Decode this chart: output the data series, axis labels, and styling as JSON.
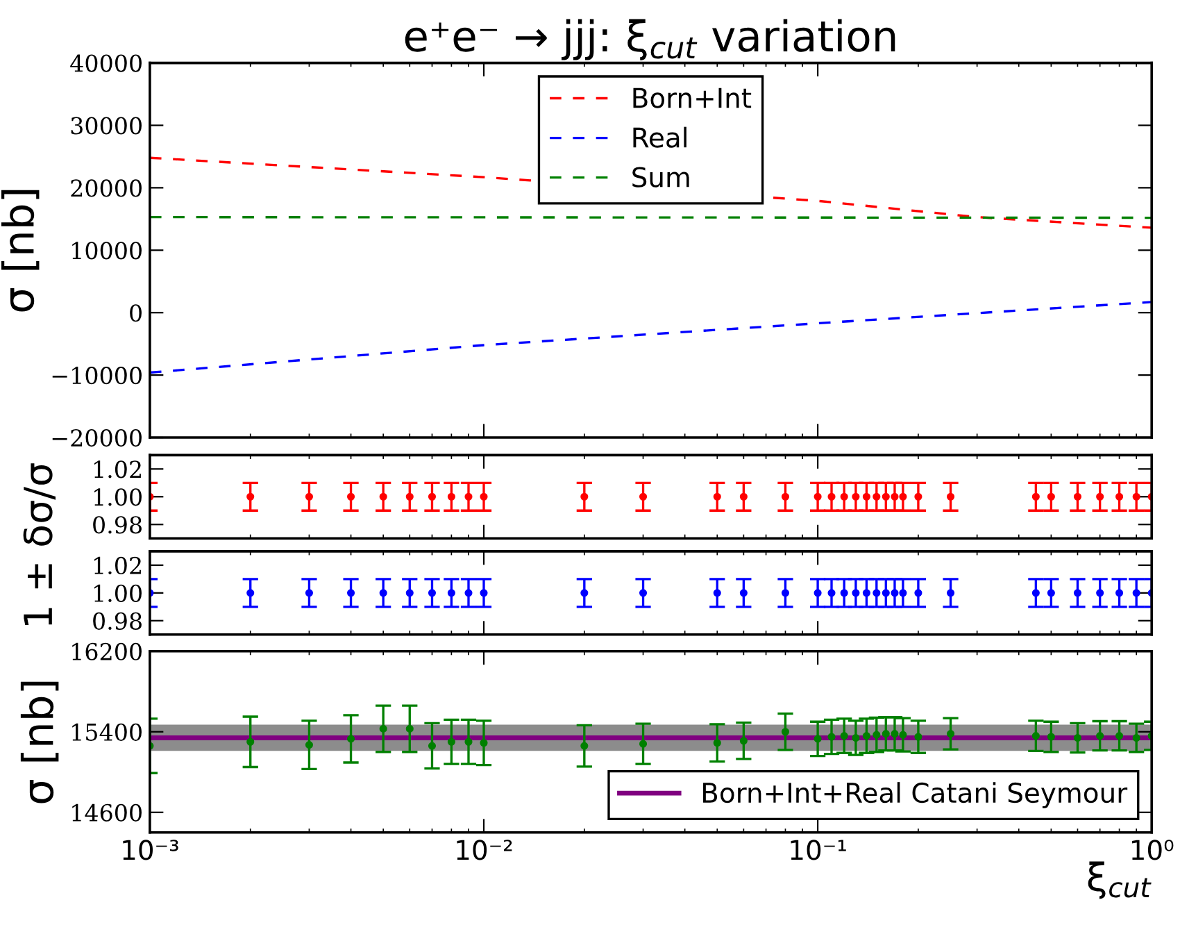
{
  "chart_data": [
    {
      "type": "line",
      "title": "e⁺e⁻ → jjj: ξ$_{cut}$ variation",
      "ylabel": "σ [nb]",
      "log": "x",
      "xlim": [
        0.001,
        1
      ],
      "xticks": [
        {
          "value": 0.001,
          "label": null
        },
        {
          "value": 0.01,
          "label": null
        },
        {
          "value": 0.1,
          "label": null
        },
        {
          "value": 1,
          "label": null
        }
      ],
      "ylim": [
        -20000,
        40000
      ],
      "yticks": [
        -20000,
        -10000,
        0,
        10000,
        20000,
        30000,
        40000
      ],
      "tick_labels": "y",
      "line_style": "dashed",
      "marker": "none",
      "legend": "top",
      "grid": false,
      "series": [
        {
          "name": "Born+Int",
          "color": "#ff0000",
          "x": [
            0.001,
            0.01,
            0.1,
            0.3,
            1
          ],
          "values": [
            24800,
            21700,
            17900,
            15300,
            13600
          ]
        },
        {
          "name": "Real",
          "color": "#0000ff",
          "x": [
            0.001,
            0.01,
            0.1,
            1
          ],
          "values": [
            -9600,
            -5200,
            -1700,
            1700
          ]
        },
        {
          "name": "Sum",
          "color": "#008000",
          "x": [
            0.001,
            1
          ],
          "values": [
            15300,
            15200
          ]
        }
      ]
    },
    {
      "type": "scatter",
      "ylabel": "1 ± δσ/σ",
      "log": "x",
      "xlim": [
        0.001,
        1
      ],
      "xticks": [
        {
          "value": 0.001,
          "label": null
        },
        {
          "value": 0.01,
          "label": null
        },
        {
          "value": 0.1,
          "label": null
        },
        {
          "value": 1,
          "label": null
        }
      ],
      "ylim": [
        0.97,
        1.03
      ],
      "yticks": [
        {
          "value": 0.98,
          "label": "0.98"
        },
        {
          "value": 1.0,
          "label": "1.00"
        },
        {
          "value": 1.02,
          "label": "1.02"
        }
      ],
      "tick_labels": "y",
      "marker": "circle",
      "grid": false,
      "series": [
        {
          "color": "#ff0000",
          "x": [
            0.001,
            0.002,
            0.003,
            0.004,
            0.005,
            0.006,
            0.007,
            0.008,
            0.009,
            0.01,
            0.02,
            0.03,
            0.05,
            0.06,
            0.08,
            0.1,
            0.11,
            0.12,
            0.13,
            0.14,
            0.15,
            0.16,
            0.17,
            0.18,
            0.2,
            0.25,
            0.45,
            0.5,
            0.6,
            0.7,
            0.8,
            0.9,
            1.0
          ],
          "values": [
            1.0,
            1.0,
            1.0,
            1.0,
            1.0,
            1.0,
            1.0,
            1.0,
            1.0,
            1.0,
            1.0,
            1.0,
            1.0,
            1.0,
            1.0,
            1.0,
            1.0,
            1.0,
            1.0,
            1.0,
            1.0,
            1.0,
            1.0,
            1.0,
            1.0,
            1.0,
            1.0,
            1.0,
            1.0,
            1.0,
            1.0,
            1.0,
            1.0
          ],
          "errors": [
            0.01,
            0.01,
            0.01,
            0.01,
            0.01,
            0.01,
            0.01,
            0.01,
            0.01,
            0.01,
            0.01,
            0.01,
            0.01,
            0.01,
            0.01,
            0.01,
            0.01,
            0.01,
            0.01,
            0.01,
            0.01,
            0.01,
            0.01,
            0.01,
            0.01,
            0.01,
            0.01,
            0.01,
            0.01,
            0.01,
            0.01,
            0.01,
            0.01
          ]
        }
      ]
    },
    {
      "type": "scatter",
      "log": "x",
      "xlim": [
        0.001,
        1
      ],
      "xticks": [
        {
          "value": 0.001,
          "label": null
        },
        {
          "value": 0.01,
          "label": null
        },
        {
          "value": 0.1,
          "label": null
        },
        {
          "value": 1,
          "label": null
        }
      ],
      "ylim": [
        0.97,
        1.03
      ],
      "yticks": [
        {
          "value": 0.98,
          "label": "0.98"
        },
        {
          "value": 1.0,
          "label": "1.00"
        },
        {
          "value": 1.02,
          "label": "1.02"
        }
      ],
      "tick_labels": "y",
      "marker": "circle",
      "grid": false,
      "series": [
        {
          "color": "#0000ff",
          "x": [
            0.001,
            0.002,
            0.003,
            0.004,
            0.005,
            0.006,
            0.007,
            0.008,
            0.009,
            0.01,
            0.02,
            0.03,
            0.05,
            0.06,
            0.08,
            0.1,
            0.11,
            0.12,
            0.13,
            0.14,
            0.15,
            0.16,
            0.17,
            0.18,
            0.2,
            0.25,
            0.45,
            0.5,
            0.6,
            0.7,
            0.8,
            0.9,
            1.0
          ],
          "values": [
            1.0,
            1.0,
            1.0,
            1.0,
            1.0,
            1.0,
            1.0,
            1.0,
            1.0,
            1.0,
            1.0,
            1.0,
            1.0,
            1.0,
            1.0,
            1.0,
            1.0,
            1.0,
            1.0,
            1.0,
            1.0,
            1.0,
            1.0,
            1.0,
            1.0,
            1.0,
            1.0,
            1.0,
            1.0,
            1.0,
            1.0,
            1.0,
            1.0
          ],
          "errors": [
            0.01,
            0.01,
            0.01,
            0.01,
            0.01,
            0.01,
            0.01,
            0.01,
            0.01,
            0.01,
            0.01,
            0.01,
            0.01,
            0.01,
            0.01,
            0.01,
            0.01,
            0.01,
            0.01,
            0.01,
            0.01,
            0.01,
            0.01,
            0.01,
            0.01,
            0.01,
            0.01,
            0.01,
            0.01,
            0.01,
            0.01,
            0.01,
            0.01
          ]
        }
      ]
    },
    {
      "type": "scatter",
      "xlabel": "ξ$_{cut}$",
      "ylabel": "σ [nb]",
      "log": "x",
      "xlim": [
        0.001,
        1
      ],
      "xticks": [
        {
          "value": 0.001,
          "label": "10⁻³"
        },
        {
          "value": 0.01,
          "label": "10⁻²"
        },
        {
          "value": 0.1,
          "label": "10⁻¹"
        },
        {
          "value": 1,
          "label": "10⁰"
        }
      ],
      "ylim": [
        14400,
        16200
      ],
      "yticks": [
        14600,
        15400,
        16200
      ],
      "marker": "circle",
      "grid": false,
      "legend": "bottom right",
      "series": [
        {
          "color": "#008000",
          "x": [
            0.001,
            0.002,
            0.003,
            0.004,
            0.005,
            0.006,
            0.007,
            0.008,
            0.009,
            0.01,
            0.02,
            0.03,
            0.05,
            0.06,
            0.08,
            0.1,
            0.11,
            0.12,
            0.13,
            0.14,
            0.15,
            0.16,
            0.17,
            0.18,
            0.2,
            0.25,
            0.45,
            0.5,
            0.6,
            0.7,
            0.8,
            0.9,
            1.0
          ],
          "values": [
            15260,
            15300,
            15270,
            15330,
            15430,
            15430,
            15260,
            15300,
            15300,
            15290,
            15260,
            15280,
            15290,
            15310,
            15400,
            15330,
            15350,
            15360,
            15340,
            15360,
            15370,
            15380,
            15380,
            15370,
            15350,
            15380,
            15360,
            15350,
            15340,
            15360,
            15360,
            15340,
            15360
          ],
          "errors": [
            270,
            250,
            240,
            235,
            230,
            230,
            225,
            220,
            220,
            220,
            205,
            200,
            185,
            180,
            180,
            170,
            170,
            170,
            170,
            170,
            170,
            165,
            165,
            165,
            160,
            155,
            150,
            150,
            145,
            145,
            145,
            140,
            140
          ]
        }
      ],
      "bands": [
        {
          "axis": "y",
          "from": 15210,
          "to": 15470,
          "color": "#8c8c8c"
        }
      ],
      "ref_lines": [
        {
          "axis": "y",
          "value": 15340,
          "label": "Born+Int+Real Catani Seymour",
          "color": "#800080"
        }
      ]
    }
  ]
}
